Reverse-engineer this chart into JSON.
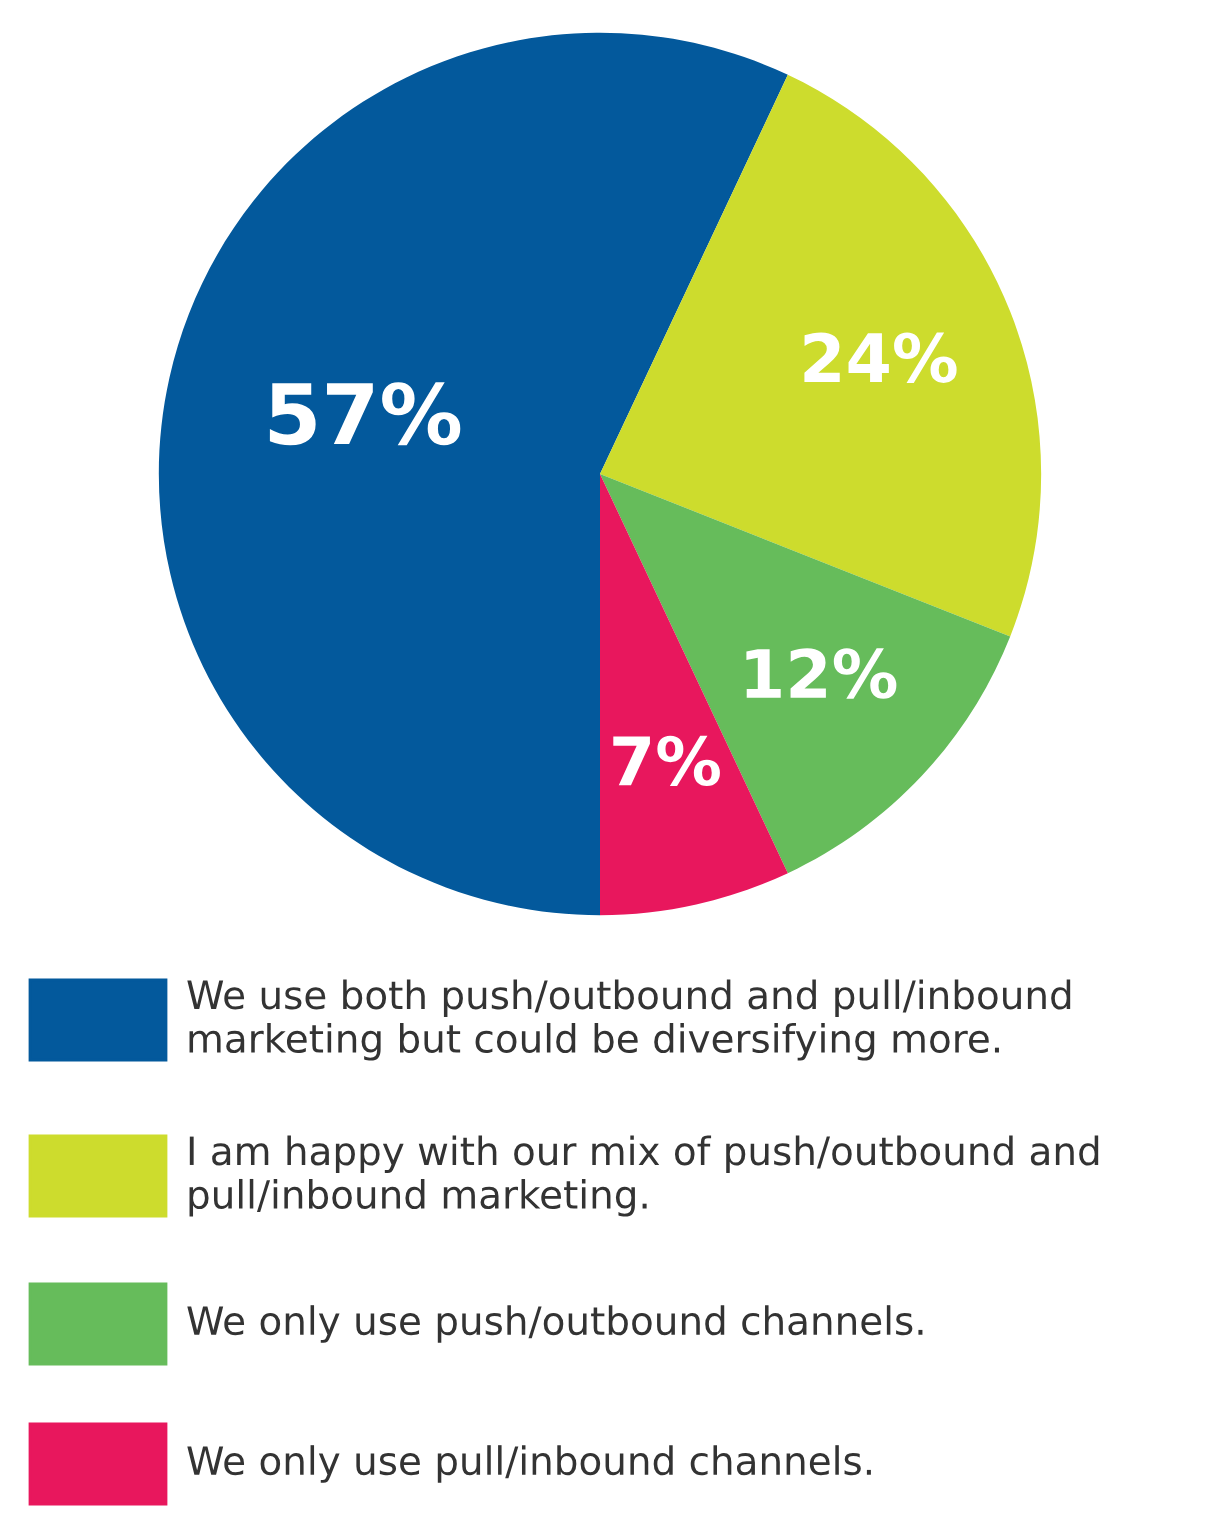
{
  "chart_data": {
    "type": "pie",
    "categories": [
      "We use both push/outbound and pull/inbound marketing but could be diversifying more.",
      "I am happy with our mix of push/outbound and pull/inbound marketing.",
      "We only use push/outbound channels.",
      "We only use pull/inbound channels."
    ],
    "values": [
      57,
      24,
      12,
      7
    ],
    "value_labels": [
      "57%",
      "24%",
      "12%",
      "7%"
    ],
    "colors": [
      "#03599c",
      "#cddc2d",
      "#66bc5b",
      "#e8175d"
    ],
    "legend": "bottom"
  }
}
